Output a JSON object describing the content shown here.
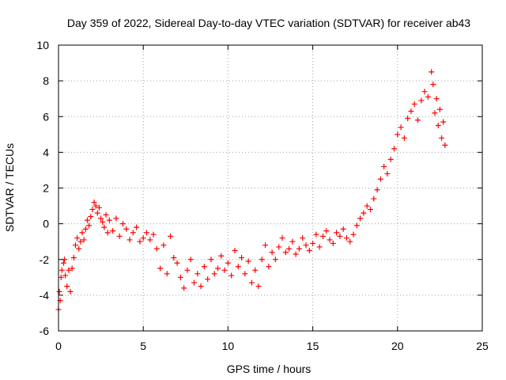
{
  "chart_data": {
    "type": "scatter",
    "title": "Day 359 of 2022, Sidereal Day-to-day VTEC variation (SDTVAR) for receiver ab43",
    "xlabel": "GPS time / hours",
    "ylabel": "SDTVAR / TECUs",
    "xlim": [
      0,
      25
    ],
    "ylim": [
      -6,
      10
    ],
    "x_ticks": [
      0,
      5,
      10,
      15,
      20,
      25
    ],
    "y_ticks": [
      -6,
      -4,
      -2,
      0,
      2,
      4,
      6,
      8,
      10
    ],
    "x_tick_labels": [
      "0",
      "5",
      "10",
      "15",
      "20",
      "25"
    ],
    "y_tick_labels": [
      "-6",
      "-4",
      "-2",
      "0",
      "2",
      "4",
      "6",
      "8",
      "10"
    ],
    "grid": true,
    "marker": "plus",
    "color": "#ff0000",
    "series": [
      {
        "name": "SDTVAR",
        "x": [
          0.0,
          0.05,
          0.1,
          0.15,
          0.2,
          0.3,
          0.35,
          0.4,
          0.5,
          0.6,
          0.7,
          0.8,
          0.9,
          1.0,
          1.1,
          1.2,
          1.3,
          1.4,
          1.5,
          1.6,
          1.7,
          1.8,
          1.9,
          2.0,
          2.1,
          2.2,
          2.3,
          2.4,
          2.5,
          2.6,
          2.7,
          2.8,
          2.9,
          3.0,
          3.2,
          3.4,
          3.6,
          3.8,
          4.0,
          4.2,
          4.4,
          4.6,
          4.8,
          5.0,
          5.2,
          5.4,
          5.6,
          5.8,
          6.0,
          6.2,
          6.4,
          6.6,
          6.8,
          7.0,
          7.2,
          7.4,
          7.6,
          7.8,
          8.0,
          8.2,
          8.4,
          8.6,
          8.8,
          9.0,
          9.2,
          9.4,
          9.6,
          9.8,
          10.0,
          10.2,
          10.4,
          10.6,
          10.8,
          11.0,
          11.2,
          11.4,
          11.6,
          11.8,
          12.0,
          12.2,
          12.4,
          12.6,
          12.8,
          13.0,
          13.2,
          13.4,
          13.6,
          13.8,
          14.0,
          14.2,
          14.4,
          14.6,
          14.8,
          15.0,
          15.2,
          15.4,
          15.6,
          15.8,
          16.0,
          16.2,
          16.4,
          16.6,
          16.8,
          17.0,
          17.2,
          17.4,
          17.6,
          17.8,
          18.0,
          18.2,
          18.4,
          18.6,
          18.8,
          19.0,
          19.2,
          19.4,
          19.6,
          19.8,
          20.0,
          20.2,
          20.4,
          20.6,
          20.8,
          21.0,
          21.2,
          21.4,
          21.6,
          21.8,
          22.0,
          22.1,
          22.2,
          22.3,
          22.4,
          22.5,
          22.6,
          22.7,
          22.8
        ],
        "y": [
          -4.8,
          -3.8,
          -4.3,
          -3.0,
          -2.6,
          -2.2,
          -2.0,
          -2.9,
          -3.5,
          -2.6,
          -3.8,
          -2.5,
          -1.9,
          -1.2,
          -0.8,
          -1.4,
          -1.0,
          -0.5,
          -0.9,
          -0.3,
          0.2,
          -0.1,
          0.4,
          0.8,
          1.2,
          1.0,
          0.6,
          0.9,
          0.3,
          0.1,
          -0.2,
          0.5,
          -0.5,
          0.2,
          -0.4,
          0.3,
          -0.7,
          0.0,
          -0.3,
          -0.9,
          -0.5,
          -0.2,
          -1.0,
          -0.8,
          -0.5,
          -0.9,
          -0.6,
          -1.4,
          -2.5,
          -1.2,
          -2.8,
          -0.7,
          -1.9,
          -2.2,
          -3.0,
          -3.6,
          -2.6,
          -2.0,
          -3.3,
          -2.8,
          -3.5,
          -2.4,
          -3.1,
          -2.0,
          -2.8,
          -2.5,
          -1.8,
          -2.6,
          -2.2,
          -2.9,
          -1.5,
          -2.4,
          -1.9,
          -2.8,
          -2.1,
          -3.3,
          -2.6,
          -3.5,
          -2.0,
          -1.2,
          -2.4,
          -1.6,
          -2.0,
          -1.3,
          -0.8,
          -1.6,
          -1.4,
          -1.0,
          -1.7,
          -1.4,
          -0.8,
          -1.2,
          -1.5,
          -1.1,
          -0.6,
          -1.3,
          -0.7,
          -0.4,
          -0.9,
          -1.1,
          -0.5,
          -0.7,
          -0.3,
          -0.8,
          -1.0,
          -0.6,
          -0.1,
          0.3,
          0.6,
          1.0,
          0.8,
          1.4,
          1.9,
          2.5,
          3.2,
          2.8,
          3.6,
          4.2,
          5.0,
          5.4,
          4.8,
          5.9,
          6.3,
          6.7,
          5.8,
          6.9,
          7.4,
          7.1,
          8.5,
          7.8,
          6.2,
          7.0,
          5.5,
          6.4,
          4.8,
          5.7,
          4.4
        ]
      }
    ]
  }
}
